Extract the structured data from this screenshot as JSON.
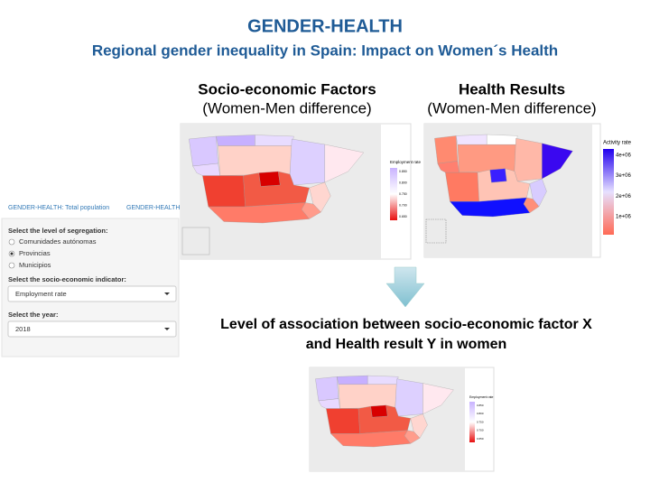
{
  "header": {
    "title": "GENDER-HEALTH",
    "subtitle": "Regional gender inequality in Spain: Impact on Women´s Health"
  },
  "panels": [
    {
      "heading": "Socio-economic Factors",
      "subheading": "(Women-Men difference)",
      "legend": {
        "title": "Employment rate",
        "ticks": [
          "0.850",
          "0.800",
          "0.750",
          "0.700",
          "0.650"
        ]
      }
    },
    {
      "heading": "Health Results",
      "subheading": "(Women-Men difference)",
      "legend": {
        "title": "Activity rate",
        "ticks": [
          "4e+06",
          "3e+06",
          "2e+06",
          "1e+06"
        ]
      }
    },
    {
      "heading_lines": [
        "Level of association between socio-economic factor X",
        "and Health result Y in women"
      ],
      "legend": {
        "title": "Employment rate",
        "ticks": [
          "0.850",
          "0.800",
          "0.750",
          "0.700",
          "0.650"
        ]
      }
    }
  ],
  "sidebar": {
    "tabs": [
      "GENDER-HEALTH: Total population",
      "GENDER-HEALTH"
    ],
    "segregation_label": "Select the level of segregation:",
    "segregation_options": [
      "Comunidades autónomas",
      "Provincias",
      "Municipios"
    ],
    "indicator_label": "Select the socio-economic indicator:",
    "indicator_value": "Employment rate",
    "year_label": "Select the year:",
    "year_value": "2018"
  }
}
